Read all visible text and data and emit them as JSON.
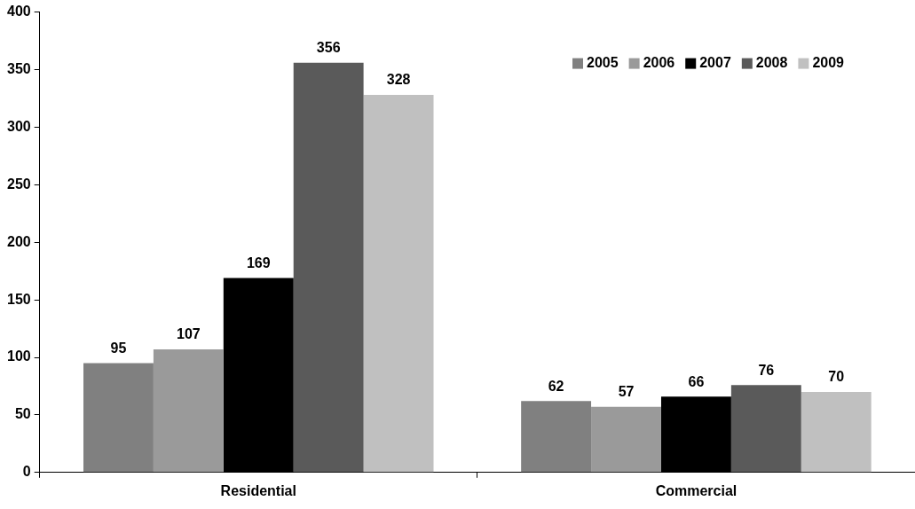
{
  "chart_data": {
    "type": "bar",
    "categories": [
      "Residential",
      "Commercial"
    ],
    "series": [
      {
        "name": "2005",
        "color": "#808080",
        "values": [
          95,
          62
        ]
      },
      {
        "name": "2006",
        "color": "#9a9a9a",
        "values": [
          107,
          57
        ]
      },
      {
        "name": "2007",
        "color": "#000000",
        "values": [
          169,
          66
        ]
      },
      {
        "name": "2008",
        "color": "#5a5a5a",
        "values": [
          356,
          76
        ]
      },
      {
        "name": "2009",
        "color": "#c0c0c0",
        "values": [
          328,
          70
        ]
      }
    ],
    "ylim": [
      0,
      400
    ],
    "yticks": [
      0,
      50,
      100,
      150,
      200,
      250,
      300,
      350,
      400
    ],
    "grid": false,
    "legend": "top right",
    "data_labels": true
  }
}
